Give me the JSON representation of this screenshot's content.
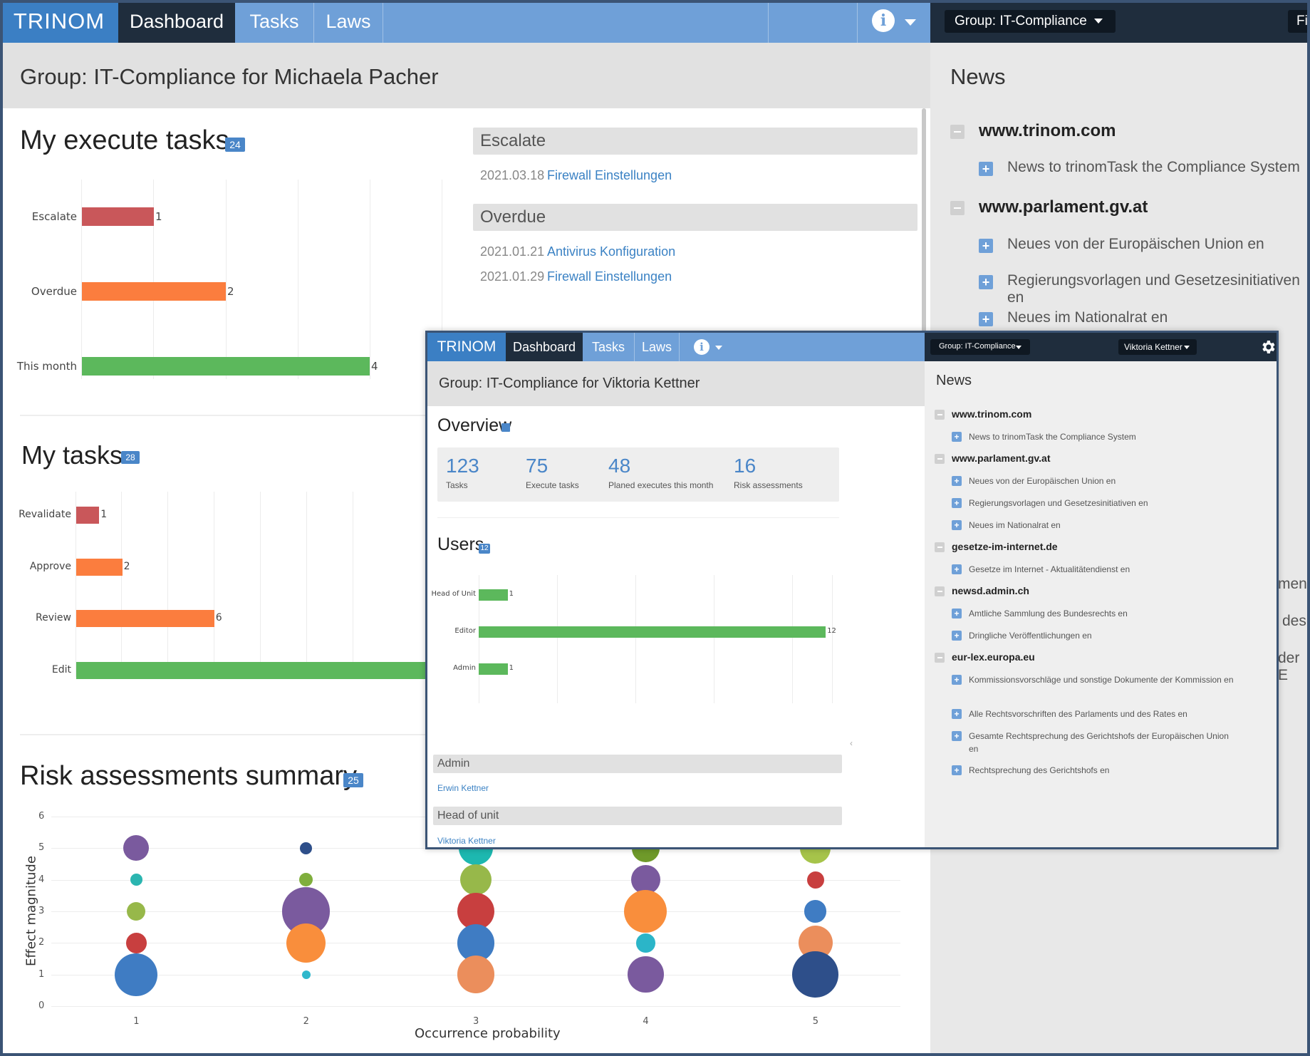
{
  "back": {
    "nav": {
      "brand": "TRINOM",
      "dashboard": "Dashboard",
      "tasks": "Tasks",
      "laws": "Laws",
      "info_icon": "info-icon",
      "group_dropdown": "Group: IT-Compliance",
      "cut_button": "Fi"
    },
    "page_title": "Group: IT-Compliance for Michaela Pacher",
    "execute": {
      "title": "My execute tasks",
      "badge": "24",
      "chart_data": {
        "type": "bar",
        "orientation": "horizontal",
        "categories": [
          "Escalate",
          "Overdue",
          "This month"
        ],
        "values": [
          1,
          2,
          4
        ],
        "colors": [
          "#c9575a",
          "#fb7d3e",
          "#5cb85c"
        ]
      },
      "labels": [
        "Escalate",
        "Overdue",
        "This month"
      ],
      "value_labels": [
        "1",
        "2",
        "4"
      ]
    },
    "escalate": {
      "header": "Escalate",
      "items": [
        {
          "date": "2021.03.18",
          "link": "Firewall Einstellungen"
        }
      ]
    },
    "overdue": {
      "header": "Overdue",
      "items": [
        {
          "date": "2021.01.21",
          "link": "Antivirus Konfiguration"
        },
        {
          "date": "2021.01.29",
          "link": "Firewall Einstellungen"
        }
      ]
    },
    "mytasks": {
      "title": "My tasks",
      "badge": "28",
      "chart_data": {
        "type": "bar",
        "orientation": "horizontal",
        "categories": [
          "Revalidate",
          "Approve",
          "Review",
          "Edit"
        ],
        "values": [
          1,
          2,
          6,
          null
        ],
        "colors": [
          "#c9575a",
          "#fb7d3e",
          "#fb7d3e",
          "#5cb85c"
        ]
      },
      "labels": [
        "Revalidate",
        "Approve",
        "Review",
        "Edit"
      ],
      "value_labels": [
        "1",
        "2",
        "6"
      ]
    },
    "risk": {
      "title": "Risk assessments summary",
      "badge": "25",
      "chart_data": {
        "type": "scatter",
        "subtype": "bubble",
        "xlabel": "Occurrence probability",
        "ylabel": "Effect magnitude",
        "x_ticks": [
          "1",
          "2",
          "3",
          "4",
          "5"
        ],
        "y_ticks": [
          "0",
          "1",
          "2",
          "3",
          "4",
          "5",
          "6"
        ],
        "xlim": [
          0.5,
          5.5
        ],
        "ylim": [
          0,
          6
        ],
        "points": [
          {
            "x": 1,
            "y": 5,
            "size": 1.5,
            "color": "#7a5a9e"
          },
          {
            "x": 1,
            "y": 4,
            "size": 0.7,
            "color": "#2bb5b0"
          },
          {
            "x": 1,
            "y": 3,
            "size": 1.1,
            "color": "#97b84a"
          },
          {
            "x": 1,
            "y": 2,
            "size": 1.2,
            "color": "#c83f3f"
          },
          {
            "x": 1,
            "y": 1,
            "size": 2.5,
            "color": "#3f7cc3"
          },
          {
            "x": 2,
            "y": 5,
            "size": 0.7,
            "color": "#2e4f8a"
          },
          {
            "x": 2,
            "y": 4,
            "size": 0.8,
            "color": "#7fae3c"
          },
          {
            "x": 2,
            "y": 3,
            "size": 2.8,
            "color": "#7a5a9e"
          },
          {
            "x": 2,
            "y": 2,
            "size": 2.3,
            "color": "#f98e3c"
          },
          {
            "x": 2,
            "y": 1,
            "size": 0.5,
            "color": "#2fb8cc"
          },
          {
            "x": 3,
            "y": 5,
            "size": 2.0,
            "color": "#1db8b0"
          },
          {
            "x": 3,
            "y": 4,
            "size": 1.8,
            "color": "#97b84a"
          },
          {
            "x": 3,
            "y": 3,
            "size": 2.2,
            "color": "#c83f3f"
          },
          {
            "x": 3,
            "y": 2,
            "size": 2.2,
            "color": "#3f7cc3"
          },
          {
            "x": 3,
            "y": 1,
            "size": 2.2,
            "color": "#eb8e5c"
          },
          {
            "x": 4,
            "y": 5,
            "size": 1.6,
            "color": "#6f9a2a"
          },
          {
            "x": 4,
            "y": 4,
            "size": 1.7,
            "color": "#7a5a9e"
          },
          {
            "x": 4,
            "y": 3,
            "size": 2.5,
            "color": "#f98e3c"
          },
          {
            "x": 4,
            "y": 2,
            "size": 1.1,
            "color": "#2bb5c8"
          },
          {
            "x": 4,
            "y": 1,
            "size": 2.1,
            "color": "#7a5a9e"
          },
          {
            "x": 5,
            "y": 5,
            "size": 1.8,
            "color": "#a6c44a"
          },
          {
            "x": 5,
            "y": 4,
            "size": 1.0,
            "color": "#c83f3f"
          },
          {
            "x": 5,
            "y": 3,
            "size": 1.3,
            "color": "#3f7cc3"
          },
          {
            "x": 5,
            "y": 2,
            "size": 2.0,
            "color": "#eb8e5c"
          },
          {
            "x": 5,
            "y": 1,
            "size": 2.7,
            "color": "#2e4f8a"
          }
        ]
      }
    },
    "news": {
      "title": "News",
      "groups": [
        {
          "domain": "www.trinom.com",
          "items": [
            "News to trinomTask the Compliance System"
          ]
        },
        {
          "domain": "www.parlament.gv.at",
          "items": [
            "Neues von der Europäischen Union en",
            "Regierungsvorlagen und Gesetzesinitiativen en",
            "Neues im Nationalrat en"
          ]
        }
      ],
      "cut_fragments": [
        "ment",
        "des",
        "der E"
      ]
    }
  },
  "front": {
    "nav": {
      "brand": "TRINOM",
      "dashboard": "Dashboard",
      "tasks": "Tasks",
      "laws": "Laws",
      "group_dropdown": "Group: IT-Compliance",
      "user_dropdown": "Viktoria Kettner"
    },
    "page_title": "Group: IT-Compliance for Viktoria Kettner",
    "overview": {
      "title": "Overview",
      "stats": [
        {
          "value": "123",
          "label": "Tasks"
        },
        {
          "value": "75",
          "label": "Execute tasks"
        },
        {
          "value": "48",
          "label": "Planed executes this month"
        },
        {
          "value": "16",
          "label": "Risk assessments"
        }
      ]
    },
    "users": {
      "title": "Users",
      "badge": "12",
      "chart_data": {
        "type": "bar",
        "orientation": "horizontal",
        "categories": [
          "Head of Unit",
          "Editor",
          "Admin"
        ],
        "values": [
          1,
          12,
          1
        ],
        "xlim": [
          0,
          13.5
        ],
        "colors": [
          "#5cb85c",
          "#5cb85c",
          "#5cb85c"
        ]
      },
      "labels": [
        "Head of Unit",
        "Editor",
        "Admin"
      ],
      "value_labels": [
        "1",
        "12",
        "1"
      ]
    },
    "admin": {
      "header": "Admin",
      "link": "Erwin Kettner"
    },
    "head_of_unit": {
      "header": "Head of unit",
      "link": "Viktoria Kettner"
    },
    "news": {
      "title": "News",
      "groups": [
        {
          "domain": "www.trinom.com",
          "items": [
            "News to trinomTask the Compliance System"
          ]
        },
        {
          "domain": "www.parlament.gv.at",
          "items": [
            "Neues von der Europäischen Union en",
            "Regierungsvorlagen und Gesetzesinitiativen en",
            "Neues im Nationalrat en"
          ]
        },
        {
          "domain": "gesetze-im-internet.de",
          "items": [
            "Gesetze im Internet - Aktualitätendienst en"
          ]
        },
        {
          "domain": "newsd.admin.ch",
          "items": [
            "Amtliche Sammlung des Bundesrechts en",
            "Dringliche Veröffentlichungen en"
          ]
        },
        {
          "domain": "eur-lex.europa.eu",
          "items": [
            "Kommissionsvorschläge und sonstige Dokumente der Kommission en",
            "Alle Rechtsvorschriften des Parlaments und des Rates en",
            "Gesamte Rechtsprechung des Gerichtshofs der Europäischen Union en",
            "Rechtsprechung des Gerichtshofs en"
          ]
        }
      ]
    }
  }
}
